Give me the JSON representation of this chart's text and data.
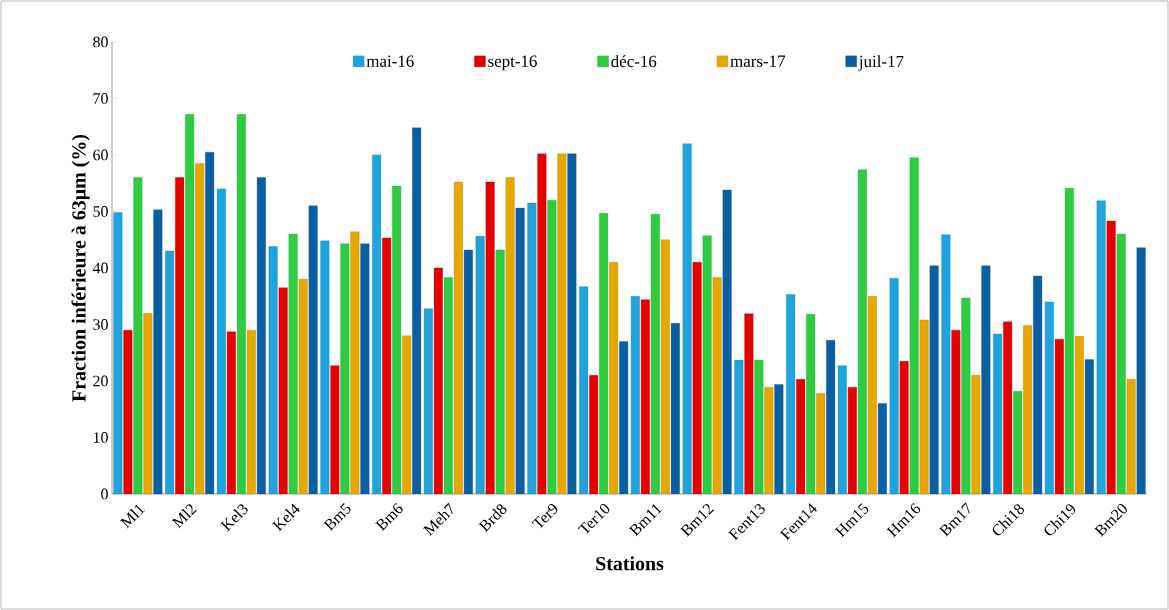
{
  "chart_data": {
    "type": "bar",
    "xlabel": "Stations",
    "ylabel": "Fraction inférieure à 63µm (%)",
    "categories": [
      "Ml1",
      "Ml2",
      "Kel3",
      "Kel4",
      "Bm5",
      "Bm6",
      "Meh7",
      "Brd8",
      "Ter9",
      "Ter10",
      "Bm11",
      "Bm12",
      "Fent13",
      "Fent14",
      "Hm15",
      "Hm16",
      "Bm17",
      "Chi18",
      "Chi19",
      "Bm20"
    ],
    "series": [
      {
        "name": "mai-16",
        "color": "#1fa3dc",
        "values": [
          49.8,
          43,
          54,
          43.8,
          44.8,
          60,
          32.8,
          45.6,
          51.5,
          36.7,
          35,
          62,
          23.7,
          35.3,
          22.7,
          38.2,
          45.9,
          28.3,
          34,
          51.9
        ]
      },
      {
        "name": "sept-16",
        "color": "#e60000",
        "values": [
          29,
          56,
          28.7,
          36.5,
          22.7,
          45.3,
          40,
          55.2,
          60.2,
          21,
          34.4,
          41,
          31.9,
          20.3,
          18.9,
          23.5,
          29,
          30.5,
          27.4,
          48.3
        ]
      },
      {
        "name": "déc-16",
        "color": "#2ecc40",
        "values": [
          56,
          67.2,
          67.2,
          46,
          44.3,
          54.5,
          38.3,
          43.2,
          52,
          49.7,
          49.5,
          45.7,
          23.7,
          31.8,
          57.4,
          59.5,
          34.7,
          18.2,
          54.1,
          46
        ]
      },
      {
        "name": "mars-17",
        "color": "#e6a800",
        "values": [
          32,
          58.5,
          29,
          38,
          46.4,
          28,
          55.2,
          56,
          60.2,
          41,
          45,
          38.3,
          18.9,
          17.8,
          35,
          30.8,
          21,
          29.8,
          27.9,
          20.3
        ]
      },
      {
        "name": "juil-17",
        "color": "#0a5fa3",
        "values": [
          50.3,
          60.5,
          56,
          51,
          44.3,
          64.8,
          43.2,
          50.6,
          60.2,
          27,
          30.2,
          53.8,
          19.4,
          27.2,
          16,
          40.4,
          40.4,
          38.6,
          23.8,
          43.6
        ]
      }
    ],
    "ylim": [
      0,
      80
    ],
    "yticks": [
      0,
      10,
      20,
      30,
      40,
      50,
      60,
      70,
      80
    ],
    "legend": "top",
    "grid": false
  }
}
